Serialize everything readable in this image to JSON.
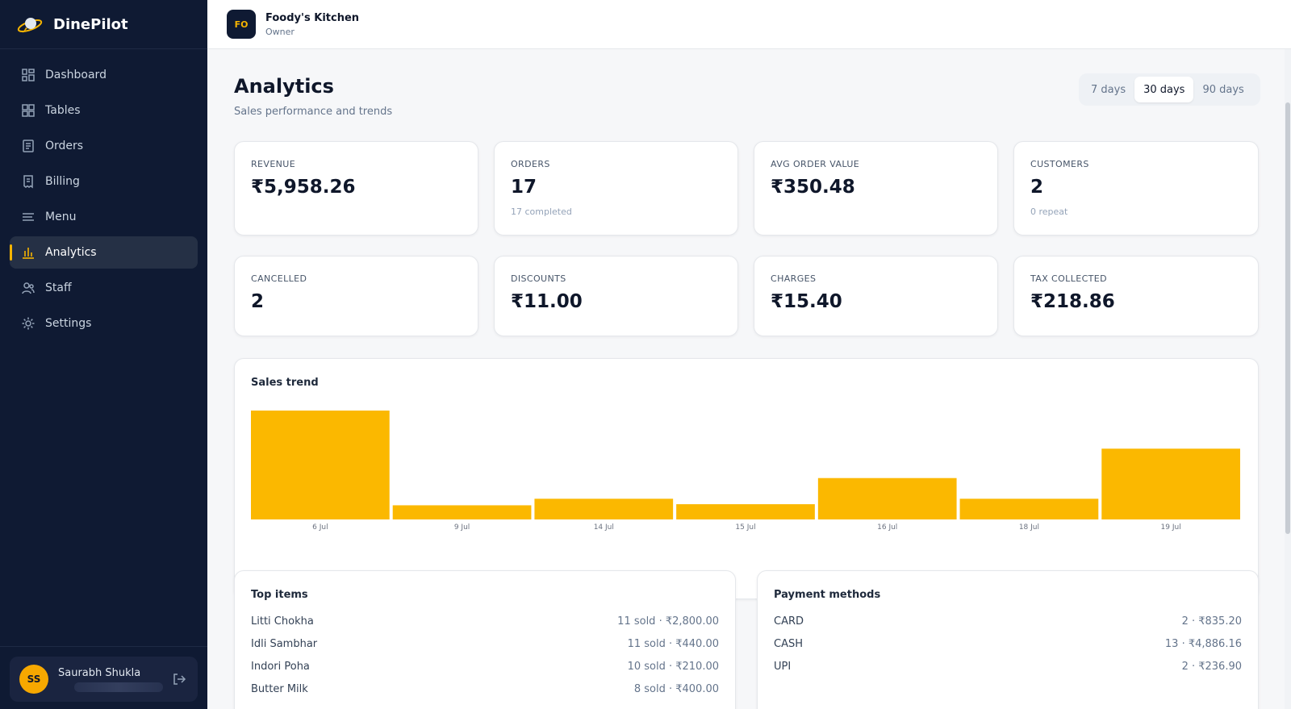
{
  "app": {
    "name": "DinePilot"
  },
  "sidebar": {
    "items": [
      {
        "label": "Dashboard",
        "icon": "grid-icon"
      },
      {
        "label": "Tables",
        "icon": "tables-icon"
      },
      {
        "label": "Orders",
        "icon": "orders-icon"
      },
      {
        "label": "Billing",
        "icon": "billing-icon"
      },
      {
        "label": "Menu",
        "icon": "menu-icon"
      },
      {
        "label": "Analytics",
        "icon": "bar-chart-icon",
        "active": true
      },
      {
        "label": "Staff",
        "icon": "staff-icon"
      },
      {
        "label": "Settings",
        "icon": "gear-icon"
      }
    ],
    "user": {
      "initials": "SS",
      "name": "Saurabh Shukla"
    }
  },
  "topbar": {
    "org_initials": "FO",
    "org_name": "Foody's Kitchen",
    "role": "Owner"
  },
  "page": {
    "title": "Analytics",
    "subtitle": "Sales performance and trends"
  },
  "range": {
    "options": [
      "7 days",
      "30 days",
      "90 days"
    ],
    "selected": "30 days"
  },
  "stats": [
    {
      "label": "REVENUE",
      "value": "₹5,958.26",
      "sub": ""
    },
    {
      "label": "ORDERS",
      "value": "17",
      "sub": "17 completed"
    },
    {
      "label": "AVG ORDER VALUE",
      "value": "₹350.48",
      "sub": ""
    },
    {
      "label": "CUSTOMERS",
      "value": "2",
      "sub": "0 repeat"
    },
    {
      "label": "CANCELLED",
      "value": "2",
      "sub": ""
    },
    {
      "label": "DISCOUNTS",
      "value": "₹11.00",
      "sub": ""
    },
    {
      "label": "CHARGES",
      "value": "₹15.40",
      "sub": ""
    },
    {
      "label": "TAX COLLECTED",
      "value": "₹218.86",
      "sub": ""
    }
  ],
  "sales_trend": {
    "title": "Sales trend"
  },
  "chart_data": {
    "type": "bar",
    "categories": [
      "6 Jul",
      "9 Jul",
      "14 Jul",
      "15 Jul",
      "16 Jul",
      "18 Jul",
      "19 Jul"
    ],
    "values": [
      100,
      13,
      19,
      14,
      38,
      19,
      65
    ],
    "title": "Sales trend",
    "xlabel": "",
    "ylabel": "",
    "grid": false,
    "color": "#fbb800"
  },
  "top_items": {
    "title": "Top items",
    "rows": [
      {
        "name": "Litti Chokha",
        "value": "11 sold · ₹2,800.00"
      },
      {
        "name": "Idli Sambhar",
        "value": "11 sold · ₹440.00"
      },
      {
        "name": "Indori Poha",
        "value": "10 sold · ₹210.00"
      },
      {
        "name": "Butter Milk",
        "value": "8 sold · ₹400.00"
      }
    ]
  },
  "payment_methods": {
    "title": "Payment methods",
    "rows": [
      {
        "name": "CARD",
        "value": "2 · ₹835.20"
      },
      {
        "name": "CASH",
        "value": "13 · ₹4,886.16"
      },
      {
        "name": "UPI",
        "value": "2 · ₹236.90"
      }
    ]
  },
  "colors": {
    "sidebar_bg": "#0f1a33",
    "accent": "#f6b400",
    "bar": "#fbb800"
  }
}
